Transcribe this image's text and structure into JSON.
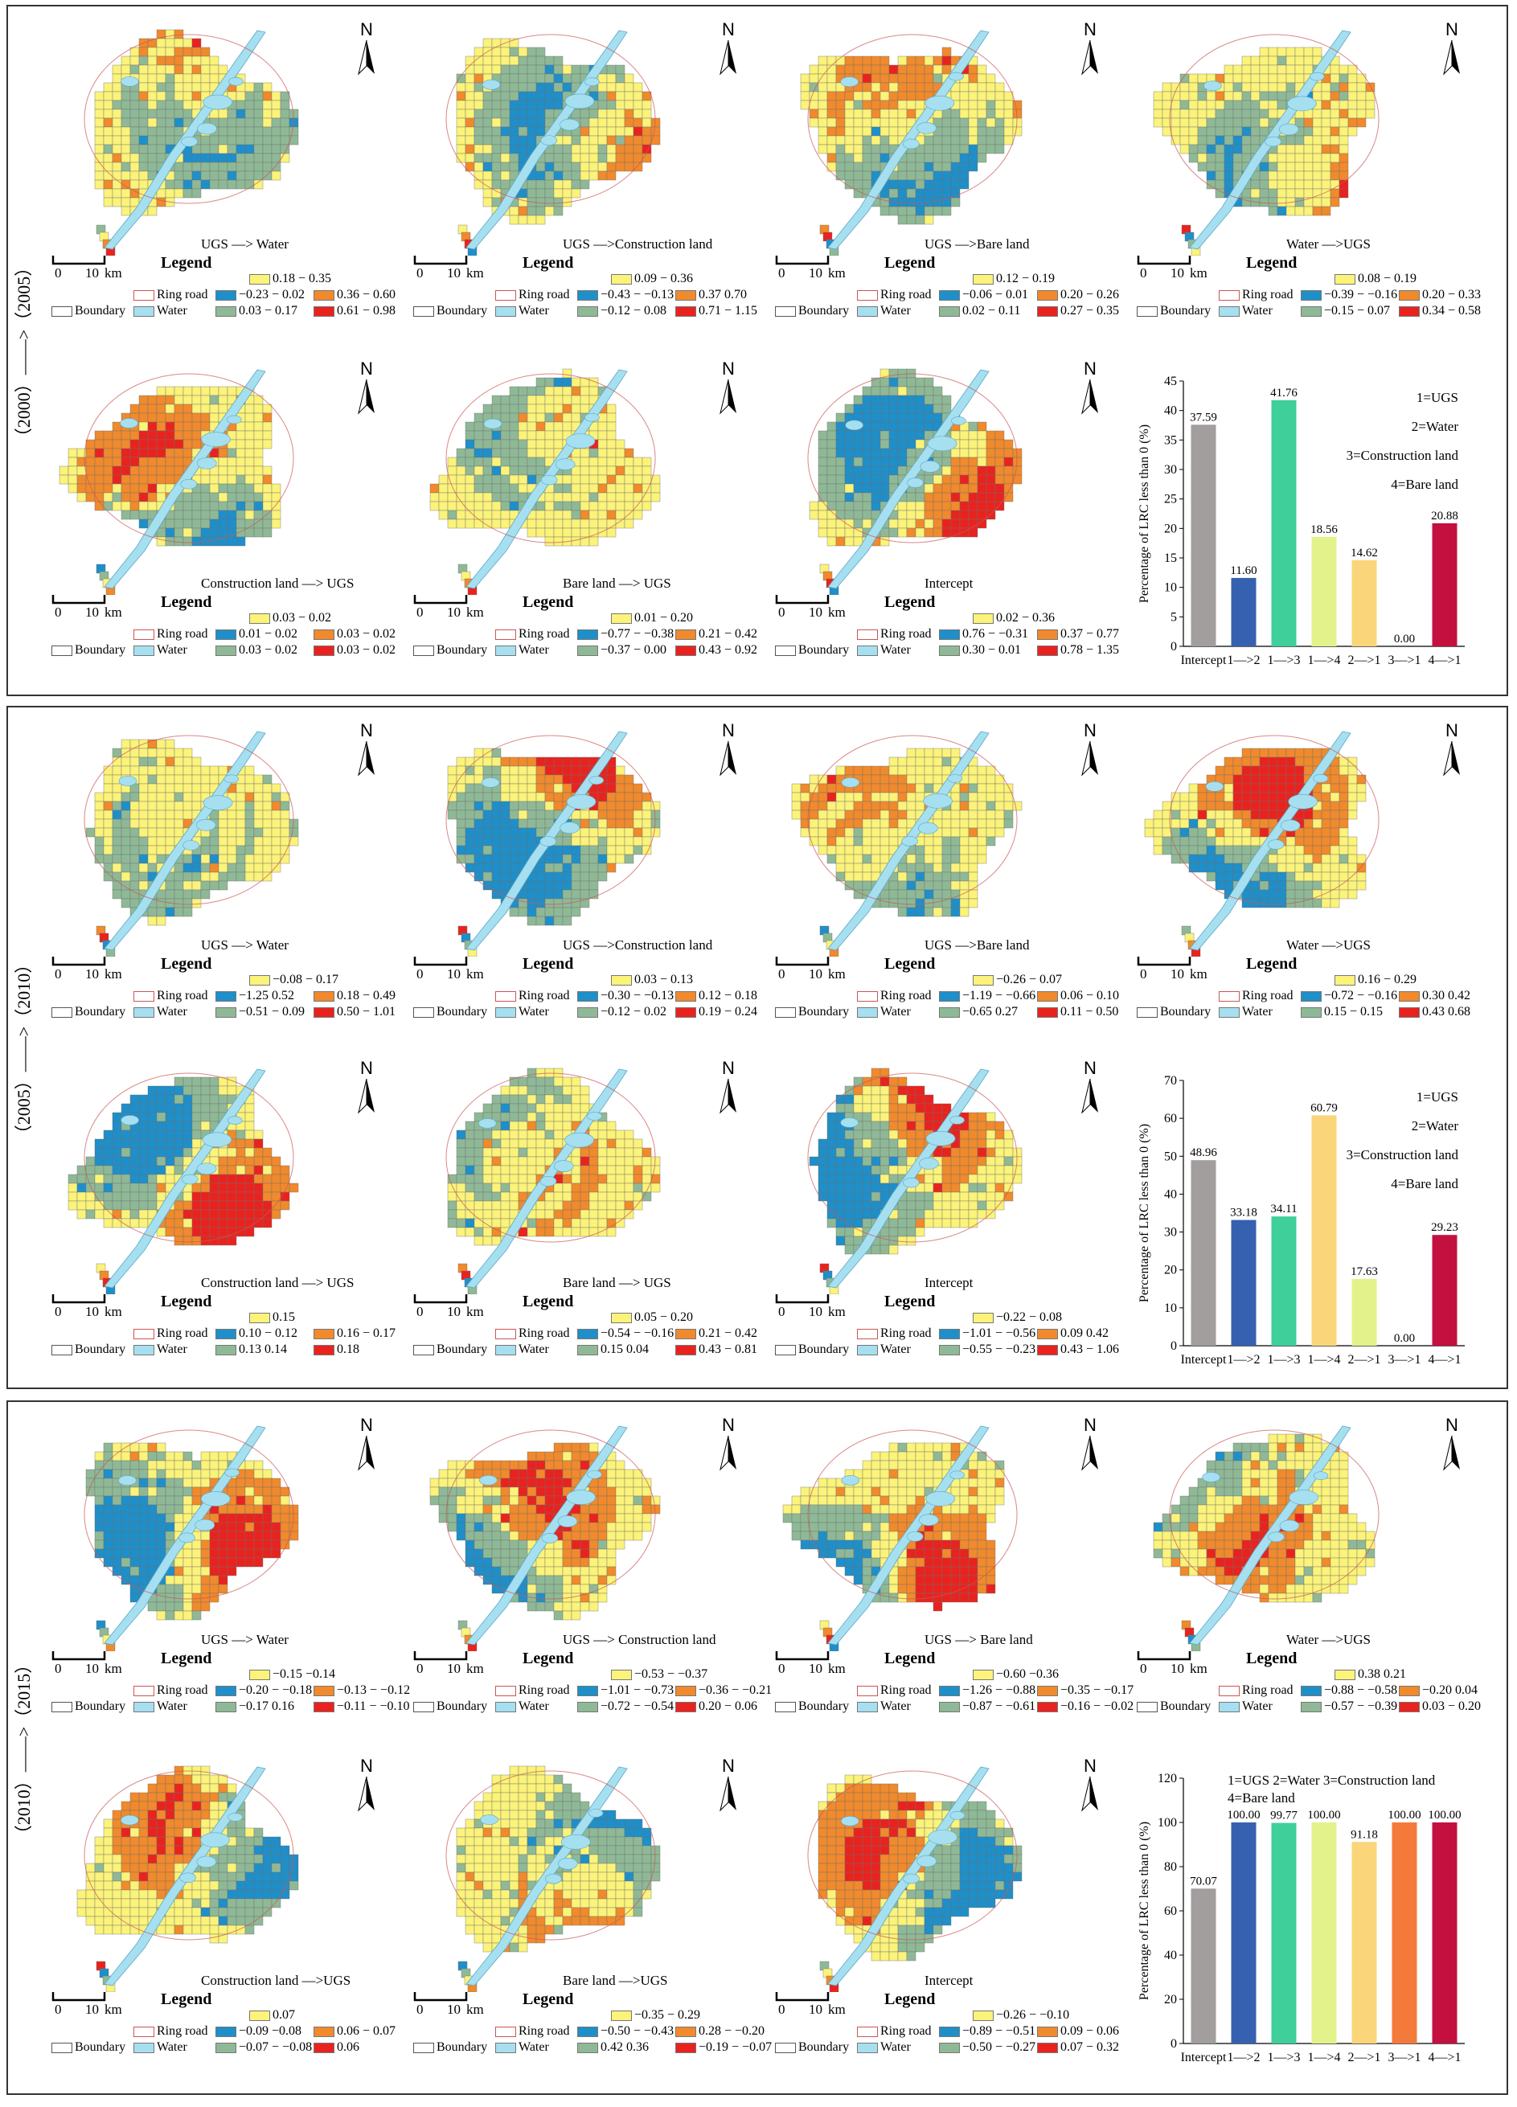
{
  "axis_label": "Percentage of LRC less than 0 (%)",
  "legend_common": {
    "header": "Legend",
    "boundary": "Boundary",
    "ring_road": "Ring road",
    "water": "Water",
    "north": "N",
    "scale_0": "0",
    "scale_10": "10",
    "scale_unit": "km"
  },
  "colors": {
    "blue": "#1f8fc9",
    "green": "#8fb996",
    "yellow": "#fbf37a",
    "orange": "#f08a2c",
    "red": "#e8231f",
    "water": "#a6dff0",
    "boundary": "#cc5555"
  },
  "panels": [
    {
      "period_label": "（2000）——>（2005）",
      "maps": [
        {
          "title": "UGS —> Water",
          "legend": [
            "−0.23 − 0.02",
            "0.03 − 0.17",
            "0.18 − 0.35",
            "0.36 − 0.60",
            "0.61 − 0.98"
          ]
        },
        {
          "title": "UGS —>Construction land",
          "legend": [
            "−0.43 − −0.13",
            "−0.12 − 0.08",
            "0.09 − 0.36",
            "0.37   0.70",
            "0.71 − 1.15"
          ]
        },
        {
          "title": "UGS —>Bare land",
          "legend": [
            "−0.06 − 0.01",
            "0.02 − 0.11",
            "0.12 − 0.19",
            "0.20 − 0.26",
            "0.27 − 0.35"
          ]
        },
        {
          "title": "Water —>UGS",
          "legend": [
            "−0.39 − −0.16",
            "−0.15 − 0.07",
            "0.08 − 0.19",
            "0.20 − 0.33",
            "0.34 − 0.58"
          ]
        },
        {
          "title": "Construction land —> UGS",
          "legend": [
            "0.01 − 0.02",
            "0.03 − 0.02",
            "0.03 − 0.02",
            "0.03 − 0.02",
            "0.03 − 0.02"
          ]
        },
        {
          "title": "Bare land —> UGS",
          "legend": [
            "−0.77 − −0.38",
            "−0.37 − 0.00",
            "0.01 − 0.20",
            "0.21 − 0.42",
            "0.43 − 0.92"
          ]
        },
        {
          "title": "Intercept",
          "legend": [
            "0.76 − −0.31",
            "0.30 − 0.01",
            "0.02 − 0.36",
            "0.37 − 0.77",
            "0.78 − 1.35"
          ]
        }
      ],
      "chart_data": {
        "type": "bar",
        "categories": [
          "Intercept",
          "1—>2",
          "1—>3",
          "1—>4",
          "2—>1",
          "3—>1",
          "4—>1"
        ],
        "values": [
          37.59,
          11.6,
          41.76,
          18.56,
          14.62,
          0.0,
          20.88
        ],
        "value_labels": [
          "37.59",
          "11.60",
          "41.76",
          "18.56",
          "14.62",
          "0.00",
          "20.88"
        ],
        "ylim": [
          0,
          45
        ],
        "yticks": [
          "0",
          "5",
          "10",
          "15",
          "20",
          "25",
          "30",
          "35",
          "40",
          "45"
        ],
        "ylabel": "Percentage of LRC less than 0 (%)",
        "legend_notes": [
          "1=UGS",
          "2=Water",
          "3=Construction land",
          "4=Bare land"
        ],
        "bar_colors": [
          "#a39e9e",
          "#3561b0",
          "#3ecf9a",
          "#e3f28a",
          "#fbd57a",
          "#f47a3c",
          "#c4103f"
        ]
      }
    },
    {
      "period_label": "（2005）——>（2010）",
      "maps": [
        {
          "title": "UGS —> Water",
          "legend": [
            "−1.25   0.52",
            "−0.51 − 0.09",
            "−0.08 − 0.17",
            "0.18 − 0.49",
            "0.50 − 1.01"
          ]
        },
        {
          "title": "UGS —>Construction land",
          "legend": [
            "−0.30 − −0.13",
            "−0.12 − 0.02",
            "0.03 − 0.13",
            "0.12 − 0.18",
            "0.19 − 0.24"
          ]
        },
        {
          "title": "UGS —>Bare land",
          "legend": [
            "−1.19 − −0.66",
            "−0.65   0.27",
            "−0.26 −   0.07",
            "0.06 − 0.10",
            "0.11 − 0.50"
          ]
        },
        {
          "title": "Water —>UGS",
          "legend": [
            "−0.72 − −0.16",
            "0.15 − 0.15",
            "0.16 − 0.29",
            "0.30   0.42",
            "0.43   0.68"
          ]
        },
        {
          "title": "Construction land —> UGS",
          "legend": [
            "0.10 − 0.12",
            "0.13   0.14",
            "0.15",
            "0.16 − 0.17",
            "0.18"
          ]
        },
        {
          "title": "Bare land —> UGS",
          "legend": [
            "−0.54 − −0.16",
            "0.15   0.04",
            "0.05 − 0.20",
            "0.21 − 0.42",
            "0.43 − 0.81"
          ]
        },
        {
          "title": "Intercept",
          "legend": [
            "−1.01 − −0.56",
            "−0.55 − −0.23",
            "−0.22 − 0.08",
            "0.09   0.42",
            "0.43 − 1.06"
          ]
        }
      ],
      "chart_data": {
        "type": "bar",
        "categories": [
          "Intercept",
          "1—>2",
          "1—>3",
          "1—>4",
          "2—>1",
          "3—>1",
          "4—>1"
        ],
        "values": [
          48.96,
          33.18,
          34.11,
          60.79,
          17.63,
          0.0,
          29.23
        ],
        "value_labels": [
          "48.96",
          "33.18",
          "34.11",
          "60.79",
          "17.63",
          "0.00",
          "29.23"
        ],
        "ylim": [
          0,
          70
        ],
        "yticks": [
          "0",
          "10",
          "20",
          "30",
          "40",
          "50",
          "60",
          "70"
        ],
        "ylabel": "Percentage of LRC less than 0 (%)",
        "legend_notes": [
          "1=UGS",
          "2=Water",
          "3=Construction land",
          "4=Bare land"
        ],
        "bar_colors": [
          "#a39e9e",
          "#3561b0",
          "#3ecf9a",
          "#fbd57a",
          "#e3f28a",
          "#f47a3c",
          "#c4103f"
        ]
      }
    },
    {
      "period_label": "（2010）——>（2015）",
      "maps": [
        {
          "title": "UGS —> Water",
          "legend": [
            "−0.20 − −0.18",
            "−0.17   0.16",
            "−0.15   −0.14",
            "−0.13 − −0.12",
            "−0.11 − −0.10"
          ]
        },
        {
          "title": "UGS —> Construction land",
          "legend": [
            "−1.01 − −0.73",
            "−0.72 − −0.54",
            "−0.53 − −0.37",
            "−0.36 − −0.21",
            "0.20 − 0.06"
          ]
        },
        {
          "title": "UGS —> Bare land",
          "legend": [
            "−1.26 − −0.88",
            "−0.87 − −0.61",
            "−0.60   −0.36",
            "−0.35 − −0.17",
            "−0.16 − −0.02"
          ]
        },
        {
          "title": "Water —>UGS",
          "legend": [
            "−0.88 − −0.58",
            "−0.57 − −0.39",
            "0.38    0.21",
            "−0.20   0.04",
            "0.03 − 0.20"
          ]
        },
        {
          "title": "Construction land —>UGS",
          "legend": [
            "−0.09   −0.08",
            "−0.07 − −0.08",
            "0.07",
            "0.06 −  0.07",
            "0.06"
          ]
        },
        {
          "title": "Bare land —>UGS",
          "legend": [
            "−0.50 − −0.43",
            "0.42   0.36",
            "−0.35 − 0.29",
            "0.28 − −0.20",
            "−0.19 − −0.07"
          ]
        },
        {
          "title": "Intercept",
          "legend": [
            "−0.89 − −0.51",
            "−0.50 − −0.27",
            "−0.26 − −0.10",
            "0.09 − 0.06",
            "0.07 − 0.32"
          ]
        }
      ],
      "chart_data": {
        "type": "bar",
        "categories": [
          "Intercept",
          "1—>2",
          "1—>3",
          "1—>4",
          "2—>1",
          "3—>1",
          "4—>1"
        ],
        "values": [
          70.07,
          100.0,
          99.77,
          100.0,
          91.18,
          100.0,
          100.0
        ],
        "value_labels": [
          "70.07",
          "100.00",
          "99.77",
          "100.00",
          "91.18",
          "100.00",
          "100.00"
        ],
        "ylim": [
          0,
          120
        ],
        "yticks": [
          "0",
          "20",
          "40",
          "60",
          "80",
          "100",
          "120"
        ],
        "ylabel": "Percentage of LRC less than 0 (%)",
        "legend_notes": [
          "1=UGS  2=Water  3=Construction land",
          "4=Bare land"
        ],
        "bar_colors": [
          "#a39e9e",
          "#3561b0",
          "#3ecf9a",
          "#e3f28a",
          "#fbd57a",
          "#f47a3c",
          "#c4103f"
        ]
      }
    }
  ]
}
